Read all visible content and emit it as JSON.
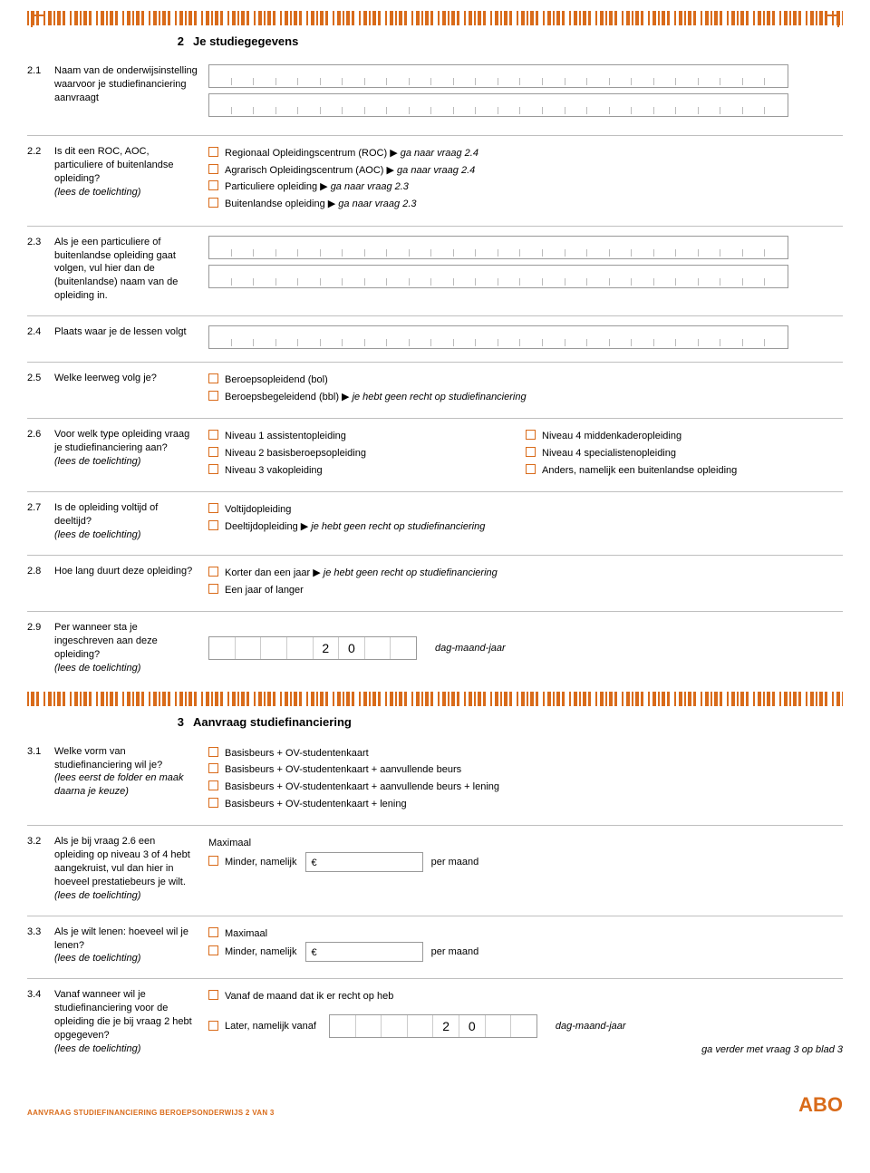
{
  "colors": {
    "accent": "#d96b1a",
    "rule": "#bfbfbf",
    "text": "#000000",
    "bg": "#ffffff"
  },
  "section2": {
    "num": "2",
    "title": "Je studiegegevens"
  },
  "q21": {
    "num": "2.1",
    "label": "Naam van de onderwijsinstelling  waarvoor je studiefinanciering aanvraagt"
  },
  "q22": {
    "num": "2.2",
    "label": "Is dit een ROC, AOC, particuliere of buitenlandse opleiding?",
    "hint": "(lees de toelichting)",
    "opts": [
      {
        "t": "Regionaal Opleidingscentrum (ROC) ",
        "a": "▶ ",
        "i": "ga naar vraag 2.4"
      },
      {
        "t": "Agrarisch Opleidingscentrum (AOC) ",
        "a": "▶ ",
        "i": "ga naar vraag 2.4"
      },
      {
        "t": "Particuliere opleiding ",
        "a": "▶ ",
        "i": "ga naar vraag 2.3"
      },
      {
        "t": "Buitenlandse opleiding ",
        "a": "▶ ",
        "i": "ga naar vraag 2.3"
      }
    ]
  },
  "q23": {
    "num": "2.3",
    "label": "Als je een particuliere of buitenlandse opleiding gaat volgen, vul  hier dan de (buitenlandse) naam van de opleiding in."
  },
  "q24": {
    "num": "2.4",
    "label": "Plaats waar je de lessen volgt"
  },
  "q25": {
    "num": "2.5",
    "label": "Welke leerweg volg je?",
    "opts": [
      {
        "t": "Beroepsopleidend (bol)"
      },
      {
        "t": "Beroepsbegeleidend (bbl) ",
        "a": "▶ ",
        "i": "je hebt geen recht op studiefinanciering"
      }
    ]
  },
  "q26": {
    "num": "2.6",
    "label": "Voor welk type opleiding vraag je studiefinanciering aan?",
    "hint": "(lees de toelichting)",
    "left": [
      {
        "t": "Niveau 1 assistentopleiding"
      },
      {
        "t": "Niveau 2 basisberoepsopleiding"
      },
      {
        "t": "Niveau 3 vakopleiding"
      }
    ],
    "right": [
      {
        "t": "Niveau 4 middenkaderopleiding"
      },
      {
        "t": "Niveau 4 specialistenopleiding"
      },
      {
        "t": "Anders, namelijk een buitenlandse opleiding"
      }
    ]
  },
  "q27": {
    "num": "2.7",
    "label": "Is de opleiding voltijd of deeltijd?",
    "hint": "(lees de toelichting)",
    "opts": [
      {
        "t": "Voltijdopleiding"
      },
      {
        "t": "Deeltijdopleiding ",
        "a": "▶ ",
        "i": "je hebt geen recht op studiefinanciering"
      }
    ]
  },
  "q28": {
    "num": "2.8",
    "label": "Hoe lang duurt deze opleiding?",
    "opts": [
      {
        "t": "Korter dan een jaar ",
        "a": "▶ ",
        "i": "je hebt geen recht op studiefinanciering"
      },
      {
        "t": "Een jaar of langer"
      }
    ]
  },
  "q29": {
    "num": "2.9",
    "label": "Per wanneer sta je ingeschreven aan deze opleiding?",
    "hint": "(lees de toelichting)",
    "prefill": [
      "",
      "",
      "",
      "",
      "2",
      "0",
      "",
      ""
    ],
    "dmjy": "dag-maand-jaar"
  },
  "section3": {
    "num": "3",
    "title": "Aanvraag studiefinanciering"
  },
  "q31": {
    "num": "3.1",
    "label": "Welke vorm van studiefinanciering wil je?",
    "hint": "(lees eerst de folder en maak daarna je keuze)",
    "opts": [
      {
        "t": "Basisbeurs + OV-studentenkaart"
      },
      {
        "t": "Basisbeurs + OV-studentenkaart + aanvullende beurs"
      },
      {
        "t": "Basisbeurs + OV-studentenkaart + aanvullende beurs + lening"
      },
      {
        "t": "Basisbeurs + OV-studentenkaart + lening"
      }
    ]
  },
  "q32": {
    "num": "3.2",
    "label": "Als je bij vraag 2.6 een opleiding op niveau 3 of 4 hebt aangekruist, vul dan hier in hoeveel prestatiebeurs je wilt.",
    "hint": "(lees de toelichting)",
    "opt1": "Maximaal",
    "opt2a": "Minder, namelijk",
    "euro": "€",
    "opt2b": "per maand"
  },
  "q33": {
    "num": "3.3",
    "label": "Als je wilt lenen: hoeveel wil je lenen?",
    "hint": "(lees de toelichting)",
    "opt1": "Maximaal",
    "opt2a": "Minder, namelijk",
    "euro": "€",
    "opt2b": "per maand"
  },
  "q34": {
    "num": "3.4",
    "label": "Vanaf wanneer wil je studiefinanciering voor de opleiding die je bij vraag 2 hebt opgegeven?",
    "hint": "(lees de toelichting)",
    "opt1": "Vanaf de maand dat ik er recht op heb",
    "opt2": "Later, namelijk vanaf",
    "prefill": [
      "",
      "",
      "",
      "",
      "2",
      "0",
      "",
      ""
    ],
    "dmjy": "dag-maand-jaar",
    "continue": "ga verder met vraag 3 op blad 3"
  },
  "footer": {
    "left": "AANVRAAG STUDIEFINANCIERING BEROEPSONDERWIJS  2 VAN 3",
    "right": "ABO"
  }
}
